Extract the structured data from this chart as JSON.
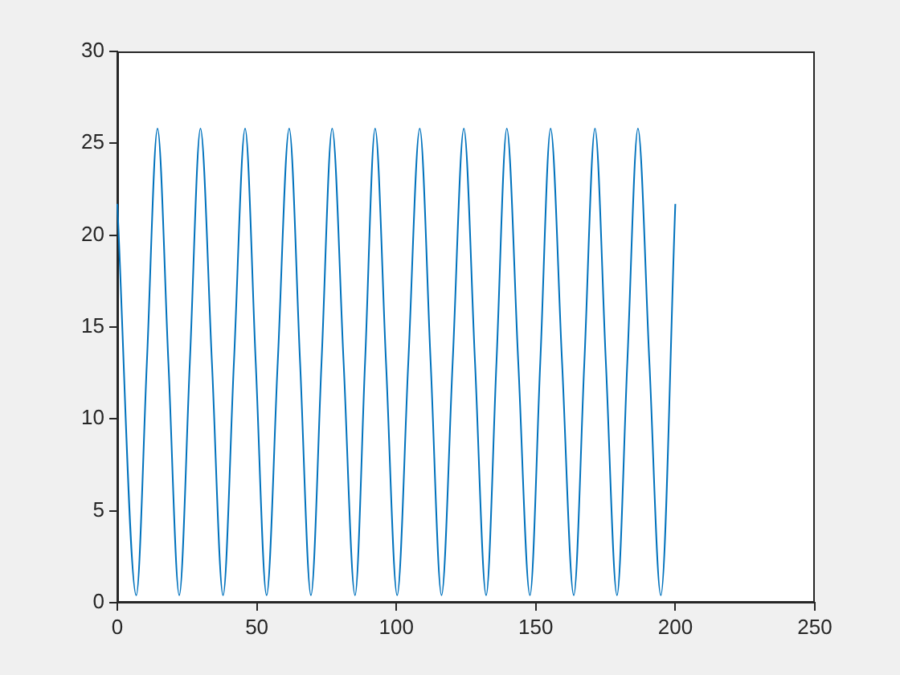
{
  "chart_data": {
    "type": "line",
    "color": "#0072bd",
    "xlim": [
      0,
      250
    ],
    "xticks": [
      0,
      50,
      100,
      150,
      200,
      250
    ],
    "ylim": [
      0,
      30
    ],
    "yticks": [
      0,
      5,
      10,
      15,
      20,
      25,
      30
    ],
    "grid": false,
    "legend": false,
    "marker": "none",
    "line_style": "solid",
    "x": [
      0,
      6.8,
      10.6,
      14.4,
      18.3,
      22.2,
      26,
      29.8,
      33.9,
      37.9,
      41.8,
      45.8,
      49.6,
      53.5,
      57.5,
      61.6,
      65.5,
      69.4,
      73.2,
      77,
      81.1,
      85.2,
      88.8,
      92.4,
      96.3,
      100.3,
      104.3,
      108.4,
      112.3,
      116.2,
      120.2,
      124.2,
      128.2,
      132.2,
      135.9,
      139.6,
      143.7,
      147.9,
      151.6,
      155.3,
      159.4,
      163.6,
      167.4,
      171.2,
      175.1,
      179.1,
      182.8,
      186.6,
      190.7,
      194.8,
      200
    ],
    "values": [
      21.7,
      0.4,
      13.1,
      25.8,
      13.1,
      0.4,
      13.1,
      25.8,
      13.1,
      0.4,
      13.1,
      25.8,
      13.1,
      0.4,
      13.1,
      25.8,
      13.1,
      0.4,
      13.1,
      25.8,
      13.1,
      0.4,
      13.1,
      25.8,
      13.1,
      0.4,
      13.1,
      25.8,
      13.1,
      0.4,
      13.1,
      25.8,
      13.1,
      0.4,
      13.1,
      25.8,
      13.1,
      0.4,
      13.1,
      25.8,
      13.1,
      0.4,
      13.1,
      25.8,
      13.1,
      0.4,
      13.1,
      25.8,
      13.1,
      0.4,
      21.7
    ]
  }
}
